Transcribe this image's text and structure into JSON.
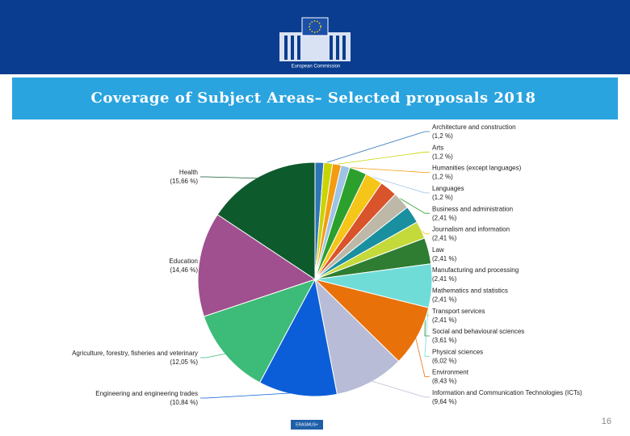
{
  "header": {
    "organization": "European Commission"
  },
  "chart_data": {
    "type": "pie",
    "title": "Coverage of Subject Areas– Selected proposals 2018",
    "categories": [
      "Architecture and construction",
      "Arts",
      "Humanities (except languages)",
      "Languages",
      "Business and administration",
      "Journalism and information",
      "Law",
      "Manufacturing and processing",
      "Mathematics and statistics",
      "Transport services",
      "Social and behavioural sciences",
      "Physical sciences",
      "Environment",
      "Information and Communication Technologies (ICTs)",
      "Engineering and engineering trades",
      "Agriculture, forestry, fisheries and veterinary",
      "Education",
      "Health"
    ],
    "values": [
      1.2,
      1.2,
      1.2,
      1.2,
      2.41,
      2.41,
      2.41,
      2.41,
      2.41,
      2.41,
      3.61,
      6.02,
      8.43,
      9.64,
      10.84,
      12.05,
      14.46,
      15.66
    ],
    "value_labels": [
      "(1,2 %)",
      "(1,2 %)",
      "(1,2 %)",
      "(1,2 %)",
      "(2,41 %)",
      "(2,41 %)",
      "(2,41 %)",
      "(2,41 %)",
      "(2,41 %)",
      "(2,41 %)",
      "(3,61 %)",
      "(6,02 %)",
      "(8,43 %)",
      "(9,64 %)",
      "(10,84 %)",
      "(12,05 %)",
      "(14,46 %)",
      "(15,66 %)"
    ],
    "colors": [
      "#2e75b6",
      "#c9d400",
      "#f39c12",
      "#9dc3e6",
      "#2ca02c",
      "#f5c518",
      "#d9532b",
      "#bdb8a8",
      "#1a8fa0",
      "#c4d93a",
      "#2e7d32",
      "#6fdcd8",
      "#e8710a",
      "#b8bcd6",
      "#0b5ed7",
      "#3dbb78",
      "#a0508f",
      "#0d5a2c"
    ]
  },
  "footer": {
    "logo": "ERASMUS+",
    "page_number": "16"
  }
}
